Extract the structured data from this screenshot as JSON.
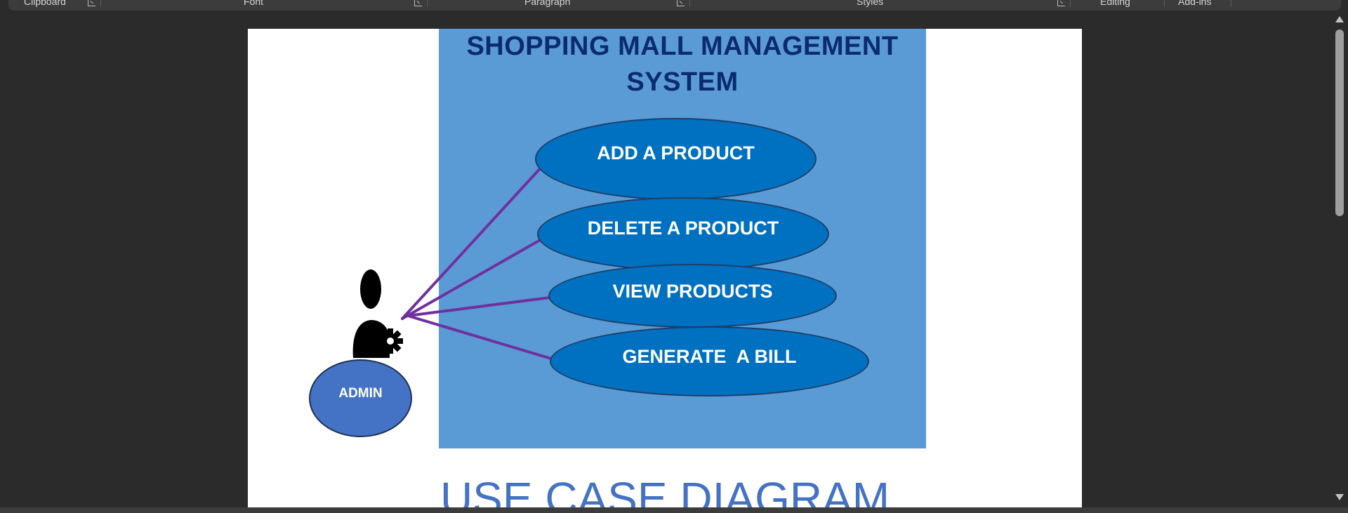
{
  "ribbon": {
    "groups": [
      {
        "label": "Clipboard"
      },
      {
        "label": "Font"
      },
      {
        "label": "Paragraph"
      },
      {
        "label": "Styles"
      },
      {
        "label": "Editing"
      },
      {
        "label": "Add-ins"
      }
    ]
  },
  "document": {
    "diagram": {
      "title_line1": "SHOPPING MALL MANAGEMENT",
      "title_line2": "SYSTEM",
      "use_cases": [
        {
          "label": "ADD A PRODUCT"
        },
        {
          "label": "DELETE A PRODUCT"
        },
        {
          "label": "VIEW PRODUCTS"
        },
        {
          "label": "GENERATE  A BILL"
        }
      ],
      "actor": {
        "label": "ADMIN",
        "icon": "admin-user-gear-icon"
      },
      "colors": {
        "boundary": "#5b9bd5",
        "use_case_fill": "#0070c0",
        "actor_fill": "#4472c4",
        "connector": "#7030a0",
        "title": "#0b2a6f"
      }
    },
    "heading": "USE CASE DIAGRAM"
  }
}
